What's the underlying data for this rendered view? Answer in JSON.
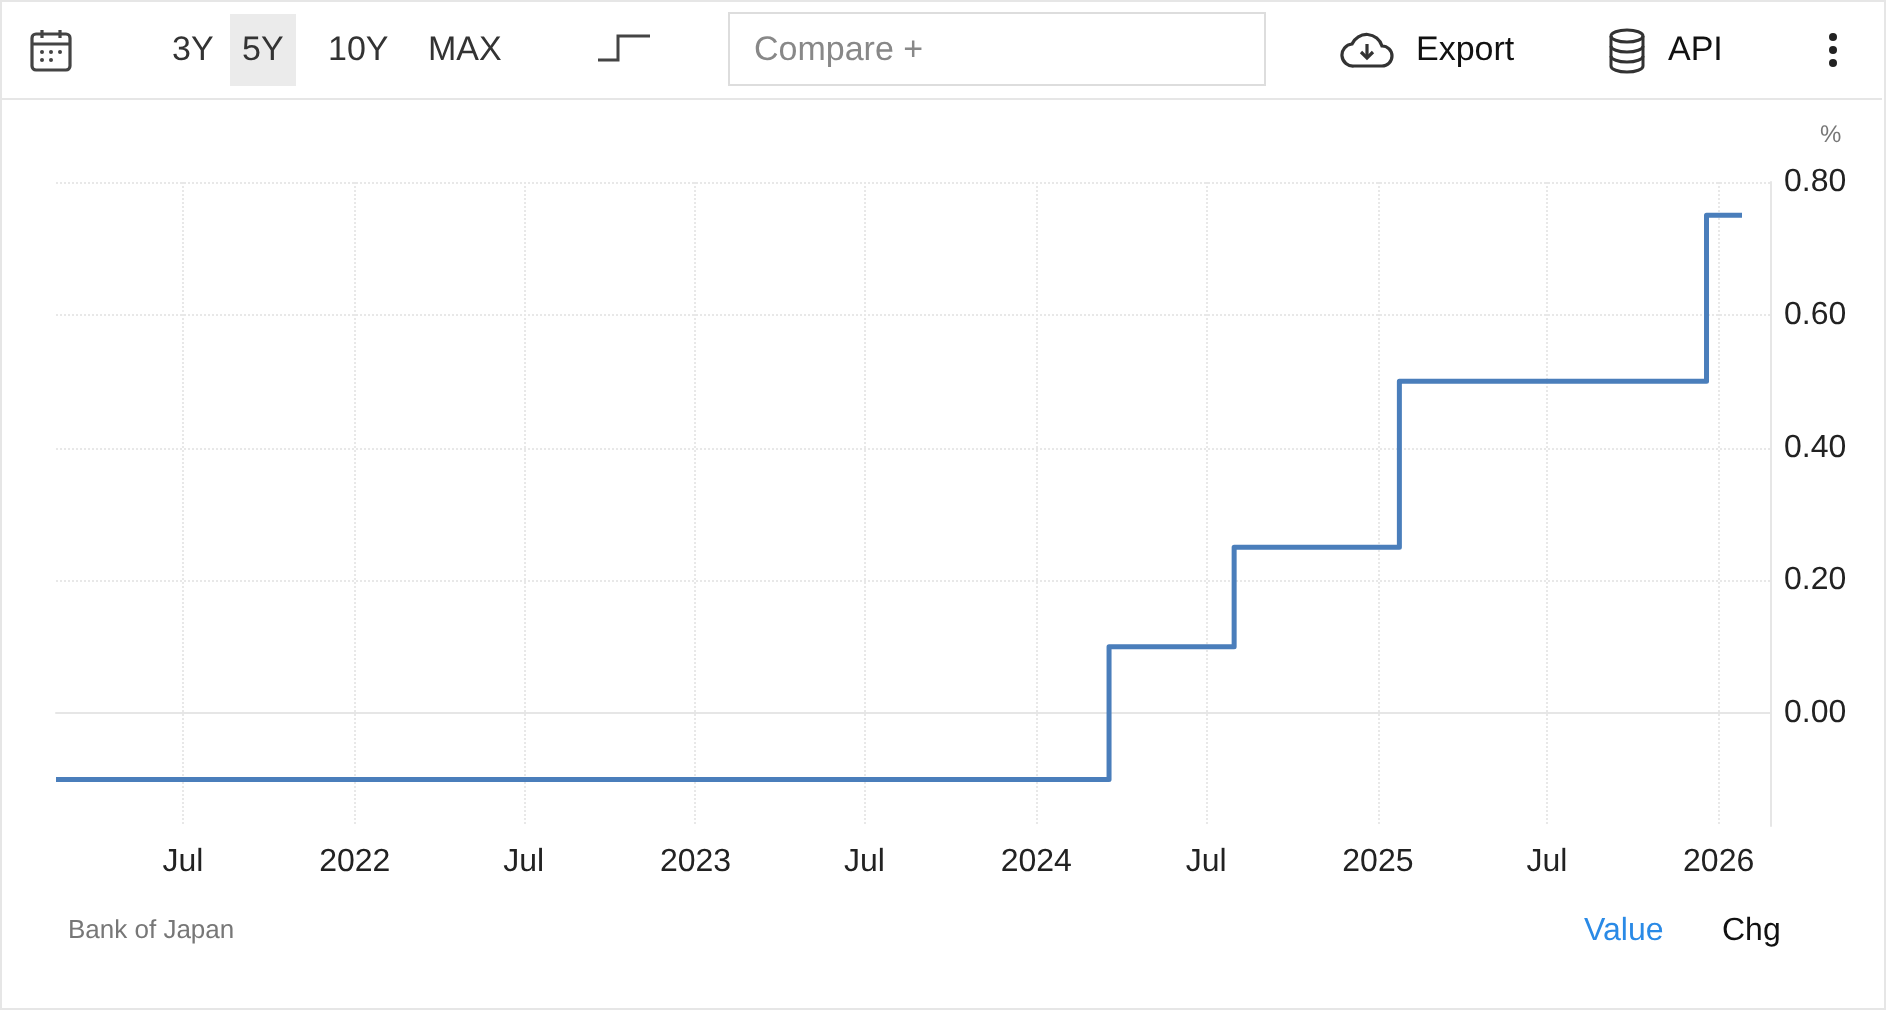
{
  "chart_data": {
    "type": "step",
    "ylabel": "%",
    "x": [
      "2021-02-15",
      "2024-03-19",
      "2024-07-31",
      "2025-01-24",
      "2025-12-19",
      "2026-01-26"
    ],
    "series": [
      {
        "color": "#4a7ebb",
        "values": [
          -0.1,
          0.1,
          0.25,
          0.5,
          0.75,
          0.75
        ]
      }
    ],
    "xlim": [
      "2021-02-15",
      "2026-02-25"
    ],
    "xticks": [
      {
        "value": "2021-07-01",
        "label": "Jul"
      },
      {
        "value": "2022-01-01",
        "label": "2022"
      },
      {
        "value": "2022-07-01",
        "label": "Jul"
      },
      {
        "value": "2023-01-01",
        "label": "2023"
      },
      {
        "value": "2023-07-01",
        "label": "Jul"
      },
      {
        "value": "2024-01-01",
        "label": "2024"
      },
      {
        "value": "2024-07-01",
        "label": "Jul"
      },
      {
        "value": "2025-01-01",
        "label": "2025"
      },
      {
        "value": "2025-07-01",
        "label": "Jul"
      },
      {
        "value": "2026-01-01",
        "label": "2026"
      }
    ],
    "ylim": [
      -0.17,
      0.8
    ],
    "yticks": [
      {
        "value": 0,
        "label": "0.00"
      },
      {
        "value": 0.2,
        "label": "0.20"
      },
      {
        "value": 0.4,
        "label": "0.40"
      },
      {
        "value": 0.6,
        "label": "0.60"
      },
      {
        "value": 0.8,
        "label": "0.80"
      }
    ],
    "grid": true,
    "marker": "none",
    "line_style": "solid",
    "annotations": [
      "3Y",
      "5Y",
      "10Y",
      "MAX",
      "Compare +",
      "Export",
      "API",
      "Bank of Japan",
      "Value",
      "Chg"
    ]
  }
}
